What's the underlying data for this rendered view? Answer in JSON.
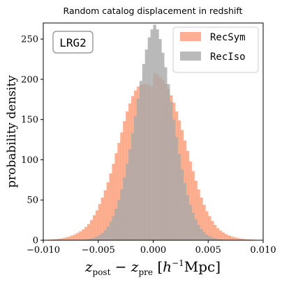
{
  "chart_data": {
    "type": "histogram",
    "title": "Random catalog displacement in redshift",
    "ylabel": "probability density",
    "xlabel_parts": {
      "var": "z",
      "sub1": "post",
      "minus": " − ",
      "sub2": "pre",
      "unit_open": " [",
      "unit_h": "h",
      "unit_exp": "−1",
      "unit_mpc": "Mpc",
      "unit_close": "]"
    },
    "xlim": [
      -0.01,
      0.01
    ],
    "ylim": [
      0,
      270
    ],
    "xticks": [
      -0.01,
      -0.005,
      0.0,
      0.005,
      0.01
    ],
    "xtick_labels": [
      "−0.010",
      "−0.005",
      "0.000",
      "0.005",
      "0.010"
    ],
    "yticks": [
      0,
      50,
      100,
      150,
      200,
      250
    ],
    "ytick_labels": [
      "0",
      "50",
      "100",
      "150",
      "200",
      "250"
    ],
    "annotation": "LRG2",
    "legend_position": "top-right",
    "bin_edges": {
      "start": -0.01,
      "width": 0.00025,
      "count": 80
    },
    "series": [
      {
        "name": "RecSym",
        "color": "#fc8d62",
        "alpha": 0.7,
        "values": [
          0.3,
          0.5,
          0.7,
          1,
          1.3,
          1.7,
          2.2,
          2.8,
          3.6,
          4.6,
          5.8,
          7.2,
          9,
          11,
          13.5,
          16.5,
          20,
          25,
          31,
          37,
          45,
          53,
          62,
          72,
          83,
          95,
          108,
          121,
          134,
          148,
          160,
          170,
          179,
          186,
          191,
          193,
          194,
          194,
          193,
          191,
          208,
          206,
          203,
          199,
          194,
          188,
          180,
          171,
          160,
          149,
          137,
          124,
          111,
          98,
          86,
          74,
          63,
          53,
          44,
          36,
          30,
          24,
          19,
          15,
          12,
          9.5,
          7.5,
          6,
          4.8,
          3.8,
          3,
          2.3,
          1.8,
          1.4,
          1.1,
          0.85,
          0.65,
          0.5,
          0.35,
          0.25
        ]
      },
      {
        "name": "RecIso",
        "color": "#a9a9a9",
        "alpha": 0.8,
        "values": [
          0,
          0,
          0,
          0,
          0,
          0,
          0,
          0,
          0,
          0,
          0,
          0.1,
          0.2,
          0.3,
          0.5,
          0.8,
          1.2,
          2,
          3,
          4.5,
          6.5,
          9,
          12.5,
          17,
          23,
          30,
          39,
          50,
          63,
          78,
          95,
          113,
          133,
          154,
          176,
          198,
          219,
          237,
          252,
          262,
          268,
          262,
          250,
          233,
          215,
          194,
          172,
          150,
          128,
          107,
          88,
          71,
          56,
          44,
          34,
          26,
          19,
          14,
          10,
          7,
          5,
          3.5,
          2.3,
          1.5,
          1,
          0.6,
          0.4,
          0.25,
          0.15,
          0.1,
          0,
          0,
          0,
          0,
          0,
          0,
          0,
          0,
          0,
          0
        ]
      }
    ]
  }
}
